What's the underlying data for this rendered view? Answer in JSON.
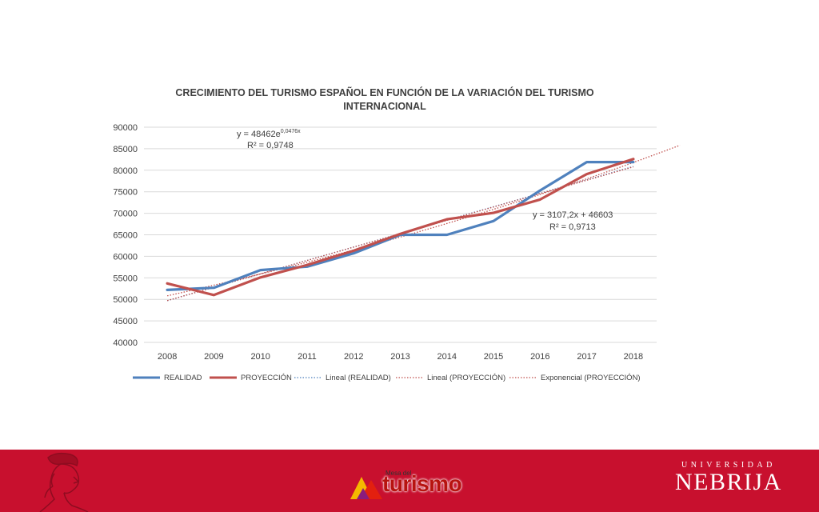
{
  "chart_data": {
    "type": "line",
    "title_line1": "CRECIMIENTO DEL TURISMO ESPAÑOL EN FUNCIÓN DE LA VARIACIÓN DEL TURISMO",
    "title_line2": "INTERNACIONAL",
    "categories": [
      "2008",
      "2009",
      "2010",
      "2011",
      "2012",
      "2013",
      "2014",
      "2015",
      "2016",
      "2017",
      "2018"
    ],
    "y_ticks": [
      "40000",
      "45000",
      "50000",
      "55000",
      "60000",
      "65000",
      "70000",
      "75000",
      "80000",
      "85000",
      "90000"
    ],
    "ylim": [
      40000,
      90000
    ],
    "grid": true,
    "legend_position": "bottom",
    "series": [
      {
        "name": "REALIDAD",
        "color": "#4f81bd",
        "style": "solid",
        "values": [
          52200,
          52700,
          56800,
          57600,
          60700,
          65000,
          65000,
          68200,
          75300,
          81900,
          81900
        ]
      },
      {
        "name": "PROYECCIÓN",
        "color": "#c0504d",
        "style": "solid",
        "values": [
          53700,
          51000,
          55100,
          58000,
          61300,
          65200,
          68600,
          70100,
          73200,
          79100,
          82600
        ]
      }
    ],
    "trendlines": [
      {
        "name": "Lineal (REALIDAD)",
        "color": "#4f81bd",
        "type": "linear",
        "x_end_index": 10,
        "y_start": 49700,
        "y_end": 80880
      },
      {
        "name": "Lineal (PROYECCIÓN)",
        "color": "#c0504d",
        "type": "linear",
        "x_end_index": 10,
        "y_start": 49710,
        "y_end": 80780
      },
      {
        "name": "Exponencial (PROYECCIÓN)",
        "color": "#c0504d",
        "type": "exponential",
        "x_end_index": 11,
        "a": 48462,
        "b": 0.0476
      }
    ],
    "annotations": {
      "exp_equation_main": "y = 48462e",
      "exp_equation_exp": "0,0476x",
      "exp_r2": "R² = 0,9748",
      "lin_equation": "y = 3107,2x + 46603",
      "lin_r2": "R² = 0,9713"
    }
  },
  "footer": {
    "background": "#c8102e",
    "logo_small": "Mesa del",
    "logo_text": "turismo",
    "university_top": "UNIVERSIDAD",
    "university_name": "NEBRIJA"
  }
}
